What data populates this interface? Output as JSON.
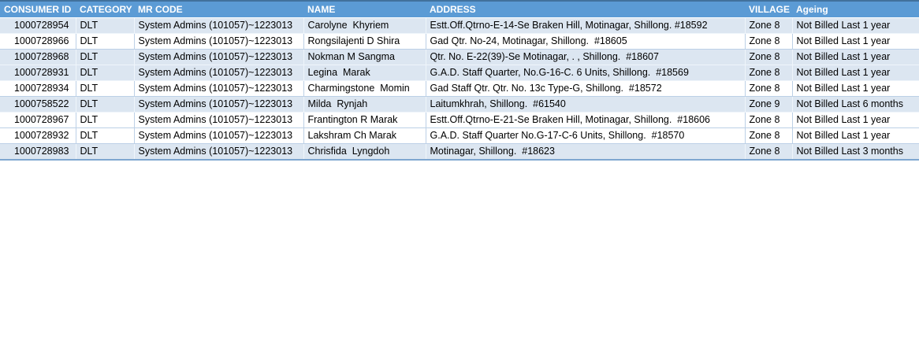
{
  "colors": {
    "header_bg": "#5B9BD5",
    "header_text": "#FFFFFF",
    "band_bg": "#DCE6F1",
    "row_bg": "#FFFFFF",
    "top_border": "#41719C",
    "bottom_border": "#7EA6D0",
    "grid_on_white": "#BCD0E6",
    "grid_on_band": "#EFF5FB",
    "cell_text": "#000000"
  },
  "table": {
    "columns": [
      {
        "id": "consumer_id",
        "label": "CONSUMER ID"
      },
      {
        "id": "category",
        "label": "CATEGORY"
      },
      {
        "id": "mr_code",
        "label": "MR CODE"
      },
      {
        "id": "name",
        "label": "NAME"
      },
      {
        "id": "address",
        "label": "ADDRESS"
      },
      {
        "id": "village",
        "label": "VILLAGE"
      },
      {
        "id": "ageing",
        "label": "Ageing"
      }
    ],
    "rows": [
      {
        "shaded": true,
        "consumer_id": "1000728954",
        "category": "DLT",
        "mr_code": "System Admins (101057)~1223013",
        "name": "Carolyne  Khyriem",
        "address": "Estt.Off.Qtrno-E-14-Se Braken Hill, Motinagar, Shillong. #18592",
        "village": "Zone 8",
        "ageing": "Not Billed Last 1 year"
      },
      {
        "shaded": false,
        "consumer_id": "1000728966",
        "category": "DLT",
        "mr_code": "System Admins (101057)~1223013",
        "name": "Rongsilajenti D Shira",
        "address": "Gad Qtr. No-24, Motinagar, Shillong.  #18605",
        "village": "Zone 8",
        "ageing": "Not Billed Last 1 year"
      },
      {
        "shaded": true,
        "consumer_id": "1000728968",
        "category": "DLT",
        "mr_code": "System Admins (101057)~1223013",
        "name": "Nokman M Sangma",
        "address": "Qtr. No. E-22(39)-Se Motinagar, . , Shillong.  #18607",
        "village": "Zone 8",
        "ageing": "Not Billed Last 1 year"
      },
      {
        "shaded": true,
        "consumer_id": "1000728931",
        "category": "DLT",
        "mr_code": "System Admins (101057)~1223013",
        "name": "Legina  Marak",
        "address": "G.A.D. Staff Quarter, No.G-16-C. 6 Units, Shillong.  #18569",
        "village": "Zone 8",
        "ageing": "Not Billed Last 1 year"
      },
      {
        "shaded": false,
        "consumer_id": "1000728934",
        "category": "DLT",
        "mr_code": "System Admins (101057)~1223013",
        "name": "Charmingstone  Momin",
        "address": "Gad Staff Qtr. Qtr. No. 13c Type-G, Shillong.  #18572",
        "village": "Zone 8",
        "ageing": "Not Billed Last 1 year"
      },
      {
        "shaded": true,
        "consumer_id": "1000758522",
        "category": "DLT",
        "mr_code": "System Admins (101057)~1223013",
        "name": "Milda  Rynjah",
        "address": "Laitumkhrah, Shillong.  #61540",
        "village": "Zone 9",
        "ageing": "Not Billed Last 6 months"
      },
      {
        "shaded": false,
        "consumer_id": "1000728967",
        "category": "DLT",
        "mr_code": "System Admins (101057)~1223013",
        "name": "Frantington R Marak",
        "address": "Estt.Off.Qtrno-E-21-Se Braken Hill, Motinagar, Shillong.  #18606",
        "village": "Zone 8",
        "ageing": "Not Billed Last 1 year"
      },
      {
        "shaded": false,
        "consumer_id": "1000728932",
        "category": "DLT",
        "mr_code": "System Admins (101057)~1223013",
        "name": "Lakshram Ch Marak",
        "address": "G.A.D. Staff Quarter No.G-17-C-6 Units, Shillong.  #18570",
        "village": "Zone 8",
        "ageing": "Not Billed Last 1 year"
      },
      {
        "shaded": true,
        "consumer_id": "1000728983",
        "category": "DLT",
        "mr_code": "System Admins (101057)~1223013",
        "name": "Chrisfida  Lyngdoh",
        "address": "Motinagar, Shillong.  #18623",
        "village": "Zone 8",
        "ageing": "Not Billed Last 3 months"
      }
    ]
  }
}
